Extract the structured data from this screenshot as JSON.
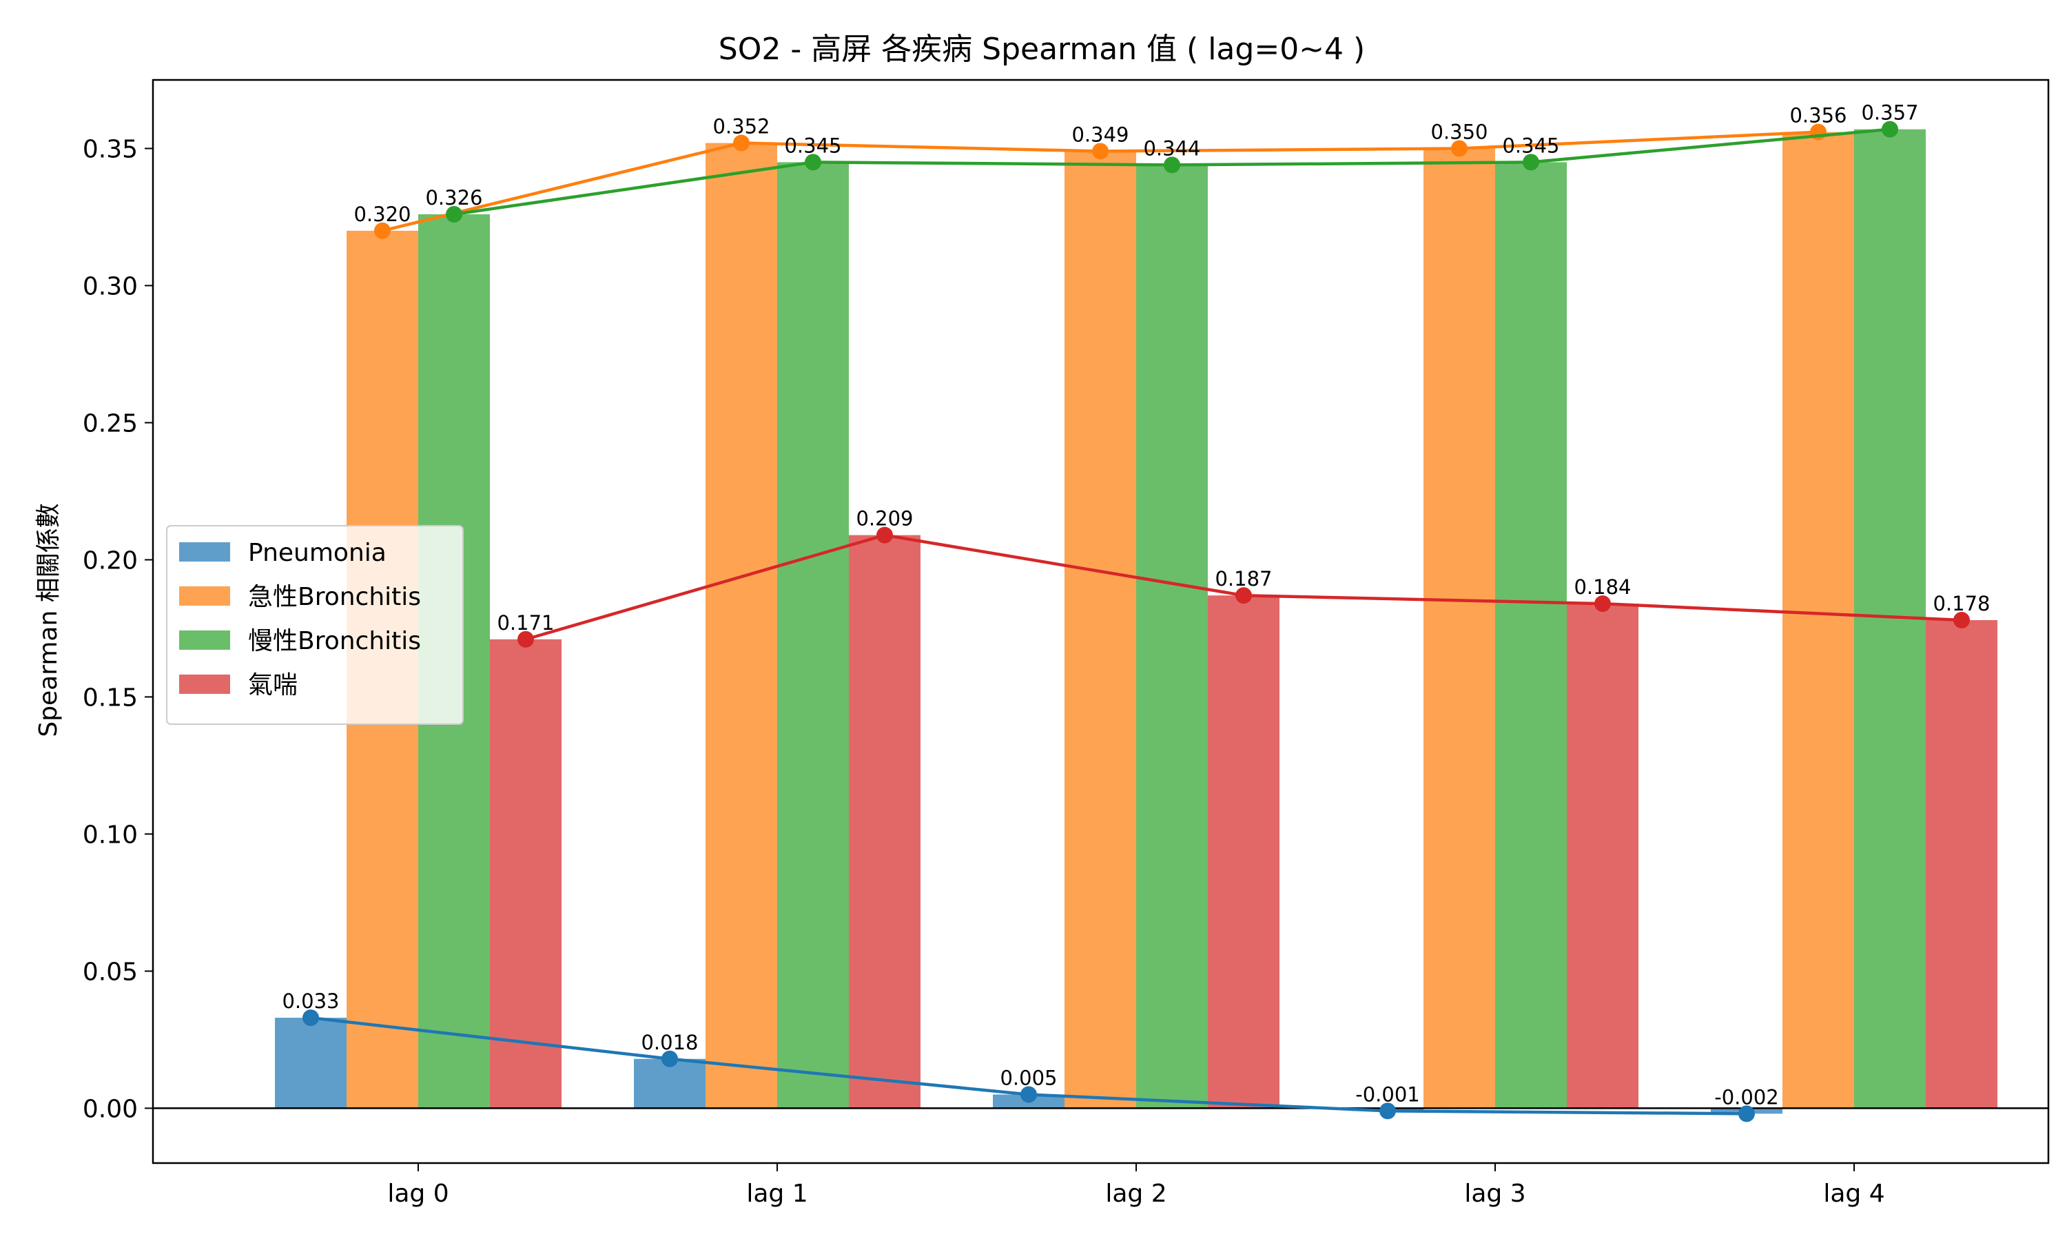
{
  "chart_data": {
    "type": "bar",
    "title": "SO2 - 高屏 各疾病 Spearman 值 ( lag=0~4 )",
    "xlabel": "",
    "ylabel": "Spearman 相關係數",
    "categories": [
      "lag 0",
      "lag 1",
      "lag 2",
      "lag 3",
      "lag 4"
    ],
    "ylim": [
      -0.02,
      0.375
    ],
    "yticks": [
      0.0,
      0.05,
      0.1,
      0.15,
      0.2,
      0.25,
      0.3,
      0.35
    ],
    "ytick_labels": [
      "0.00",
      "0.05",
      "0.10",
      "0.15",
      "0.20",
      "0.25",
      "0.30",
      "0.35"
    ],
    "series": [
      {
        "name": "Pneumonia",
        "values": [
          0.033,
          0.018,
          0.005,
          -0.001,
          -0.002
        ],
        "labels": [
          "0.033",
          "0.018",
          "0.005",
          "-0.001",
          "-0.002"
        ],
        "bar_color": "#5f9ecb",
        "line_color": "#1f77b4"
      },
      {
        "name": "急性Bronchitis",
        "values": [
          0.32,
          0.352,
          0.349,
          0.35,
          0.356
        ],
        "labels": [
          "0.320",
          "0.352",
          "0.349",
          "0.350",
          "0.356"
        ],
        "bar_color": "#fea352",
        "line_color": "#ff7f0e"
      },
      {
        "name": "慢性Bronchitis",
        "values": [
          0.326,
          0.345,
          0.344,
          0.345,
          0.357
        ],
        "labels": [
          "0.326",
          "0.345",
          "0.344",
          "0.345",
          "0.357"
        ],
        "bar_color": "#6abe6a",
        "line_color": "#2ca02c"
      },
      {
        "name": "氣喘",
        "values": [
          0.171,
          0.209,
          0.187,
          0.184,
          0.178
        ],
        "labels": [
          "0.171",
          "0.209",
          "0.187",
          "0.184",
          "0.178"
        ],
        "bar_color": "#e26868",
        "line_color": "#d62728"
      }
    ],
    "zero_line": true,
    "grid": false,
    "legend_position": "center-left",
    "overlay": "line-with-markers per series"
  }
}
